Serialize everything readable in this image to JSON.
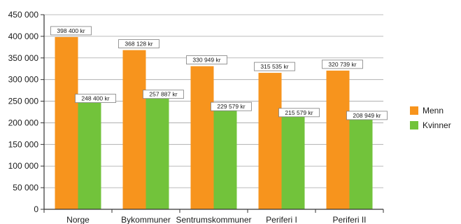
{
  "chart_data": {
    "type": "bar",
    "categories": [
      "Norge",
      "Bykommuner",
      "Sentrumskommuner",
      "Periferi I",
      "Periferi II"
    ],
    "series": [
      {
        "name": "Menn",
        "color": "#f7941d",
        "values": [
          398400,
          368128,
          330949,
          315535,
          320739
        ],
        "data_labels": [
          "398 400 kr",
          "368 128 kr",
          "330 949 kr",
          "315 535 kr",
          "320 739 kr"
        ]
      },
      {
        "name": "Kvinner",
        "color": "#72c33b",
        "values": [
          248400,
          257887,
          229579,
          215579,
          208949
        ],
        "data_labels": [
          "248 400 kr",
          "257 887 kr",
          "229 579 kr",
          "215 579 kr",
          "208 949 kr"
        ]
      }
    ],
    "y_ticks": [
      "0",
      "50 000",
      "100 000",
      "150 000",
      "200 000",
      "250 000",
      "300 000",
      "350 000",
      "400 000",
      "450 000"
    ],
    "ylim": [
      0,
      450000
    ],
    "y_tick_step": 50000,
    "grid": true,
    "legend_position": "right",
    "title": "",
    "xlabel": "",
    "ylabel": ""
  }
}
